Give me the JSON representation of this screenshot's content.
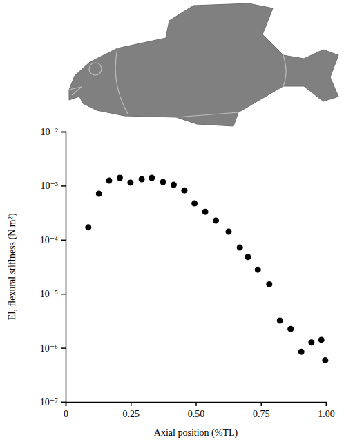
{
  "chart_data": {
    "type": "scatter",
    "xlabel": "Axial position (%TL)",
    "ylabel": "EI, flexural stiffness (N m²)",
    "log": "y",
    "marker": "circle",
    "color": "#000000",
    "x": [
      0.087,
      0.128,
      0.167,
      0.208,
      0.249,
      0.292,
      0.331,
      0.374,
      0.415,
      0.456,
      0.495,
      0.536,
      0.577,
      0.626,
      0.669,
      0.7,
      0.738,
      0.782,
      0.823,
      0.864,
      0.905,
      0.944,
      0.982,
      0.997
    ],
    "values": [
      0.00017,
      0.00071,
      0.00124,
      0.0014,
      0.00114,
      0.00132,
      0.0014,
      0.00117,
      0.00104,
      0.00082,
      0.00047,
      0.00033,
      0.000226,
      0.000141,
      7.2e-05,
      4.8e-05,
      2.8e-05,
      1.5e-05,
      3.2e-06,
      2.24e-06,
      8.5e-07,
      1.26e-06,
      1.41e-06,
      5.9e-07
    ],
    "xlim": [
      0,
      1
    ],
    "xticks": [
      0,
      0.25,
      {
        "value": 0.5,
        "label": "0.50"
      },
      0.75,
      {
        "value": 1,
        "label": "1.00"
      }
    ],
    "ylim": [
      1e-07,
      0.01
    ],
    "yticks": [
      {
        "value": 1e-07,
        "label": "10⁻⁷"
      },
      {
        "value": 1e-06,
        "label": "10⁻⁶"
      },
      {
        "value": 1e-05,
        "label": "10⁻⁵"
      },
      {
        "value": 0.0001,
        "label": "10⁻⁴"
      },
      {
        "value": 0.001,
        "label": "10⁻³"
      },
      {
        "value": 0.01,
        "label": "10⁻²"
      }
    ]
  }
}
